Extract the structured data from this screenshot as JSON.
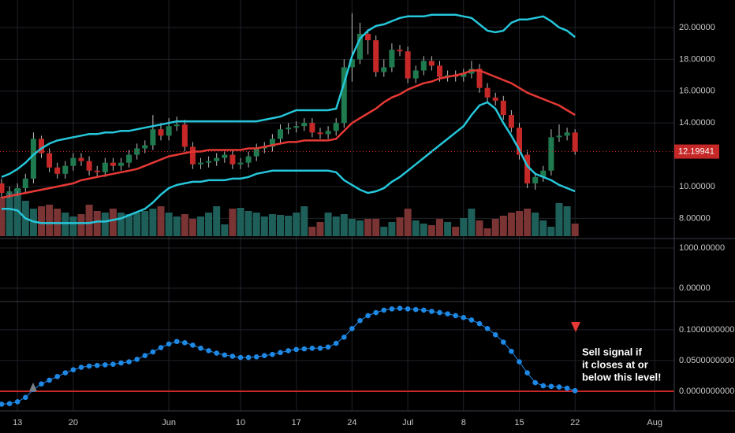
{
  "chart_data": [
    {
      "type": "candlestick",
      "categories": [
        null,
        null,
        "13",
        null,
        null,
        null,
        null,
        null,
        null,
        "20",
        null,
        null,
        null,
        null,
        null,
        null,
        null,
        null,
        null,
        null,
        null,
        "Jun",
        null,
        null,
        null,
        null,
        null,
        null,
        null,
        null,
        "10",
        null,
        null,
        null,
        null,
        null,
        null,
        "17",
        null,
        null,
        null,
        null,
        null,
        null,
        "24",
        null,
        null,
        null,
        null,
        null,
        null,
        "Jul",
        null,
        null,
        null,
        null,
        null,
        null,
        "8",
        null,
        null,
        null,
        null,
        null,
        null,
        "15",
        null,
        null,
        null,
        null,
        null,
        null,
        "22",
        null,
        null,
        null,
        null,
        null,
        null,
        null,
        null,
        null,
        "Aug"
      ],
      "open": [
        10.2,
        9.6,
        9.7,
        9.9,
        10.5,
        13.0,
        12.1,
        11.2,
        10.8,
        11.3,
        11.8,
        11.6,
        11.0,
        10.9,
        11.5,
        11.3,
        11.5,
        12.0,
        12.4,
        12.6,
        13.6,
        13.2,
        13.8,
        13.9,
        12.5,
        11.4,
        11.5,
        11.6,
        11.8,
        12.0,
        11.4,
        11.5,
        11.9,
        12.4,
        12.5,
        13.0,
        13.6,
        13.7,
        13.8,
        14.0,
        13.4,
        13.3,
        13.5,
        14.0,
        17.5,
        18.0,
        19.6,
        19.2,
        17.2,
        17.5,
        18.6,
        18.5,
        16.8,
        17.3,
        17.9,
        17.6,
        16.9,
        17.0,
        16.9,
        17.1,
        17.4,
        16.2,
        15.6,
        15.4,
        14.5,
        13.7,
        12.0,
        10.2,
        10.6,
        11.0,
        13.1,
        13.2,
        13.4,
        null,
        null,
        null,
        null,
        null,
        null,
        null,
        null,
        null,
        null
      ],
      "high": [
        10.5,
        10.0,
        10.2,
        10.8,
        13.4,
        13.2,
        12.4,
        11.5,
        11.6,
        12.1,
        12.1,
        11.9,
        11.3,
        11.8,
        11.8,
        11.8,
        12.3,
        12.7,
        12.9,
        14.5,
        14.0,
        14.3,
        14.4,
        14.2,
        12.8,
        11.8,
        11.9,
        12.1,
        12.3,
        12.3,
        11.8,
        12.2,
        12.7,
        12.8,
        13.3,
        13.9,
        14.0,
        14.1,
        14.3,
        14.3,
        13.7,
        13.8,
        14.3,
        18.0,
        20.9,
        20.3,
        19.9,
        19.5,
        18.0,
        19.0,
        18.9,
        18.8,
        17.6,
        18.2,
        18.2,
        17.9,
        17.3,
        17.3,
        17.4,
        17.9,
        17.7,
        16.5,
        15.9,
        15.7,
        14.8,
        14.0,
        12.3,
        10.9,
        11.3,
        13.6,
        13.9,
        13.7,
        13.6,
        null,
        null,
        null,
        null,
        null,
        null,
        null,
        null,
        null,
        null
      ],
      "low": [
        9.3,
        9.3,
        9.4,
        9.6,
        10.2,
        11.8,
        10.9,
        10.5,
        10.5,
        11.0,
        11.3,
        10.7,
        10.6,
        10.6,
        11.0,
        11.0,
        11.2,
        11.7,
        12.1,
        12.3,
        12.9,
        12.9,
        13.5,
        12.2,
        11.1,
        11.1,
        11.2,
        11.3,
        11.5,
        11.1,
        11.1,
        11.2,
        11.6,
        12.1,
        12.2,
        12.7,
        13.3,
        13.4,
        13.5,
        13.1,
        13.0,
        13.0,
        13.2,
        13.7,
        16.6,
        17.7,
        18.3,
        16.9,
        16.9,
        17.2,
        18.2,
        16.5,
        16.5,
        17.0,
        17.3,
        16.6,
        16.6,
        16.6,
        16.6,
        16.8,
        15.9,
        15.3,
        15.1,
        14.2,
        13.4,
        11.7,
        9.9,
        9.8,
        10.3,
        10.7,
        12.8,
        12.9,
        12.0,
        null,
        null,
        null,
        null,
        null,
        null,
        null,
        null,
        null,
        null
      ],
      "close": [
        9.6,
        9.7,
        9.9,
        10.5,
        13.0,
        12.1,
        11.2,
        10.8,
        11.3,
        11.8,
        11.6,
        11.0,
        10.9,
        11.5,
        11.3,
        11.5,
        12.0,
        12.4,
        12.6,
        13.6,
        13.2,
        13.8,
        13.9,
        12.5,
        11.4,
        11.5,
        11.6,
        11.8,
        12.0,
        11.4,
        11.5,
        11.9,
        12.4,
        12.5,
        13.0,
        13.6,
        13.7,
        13.8,
        14.0,
        13.4,
        13.3,
        13.5,
        14.0,
        17.5,
        18.0,
        19.6,
        19.2,
        17.2,
        17.5,
        18.6,
        18.5,
        16.8,
        17.3,
        17.9,
        17.6,
        16.9,
        17.0,
        16.9,
        17.1,
        17.4,
        16.2,
        15.6,
        15.4,
        14.5,
        13.7,
        12.0,
        10.2,
        10.6,
        11.0,
        13.1,
        13.2,
        13.4,
        12.19941,
        null,
        null,
        null,
        null,
        null,
        null,
        null,
        null,
        null,
        null
      ],
      "volume": [
        50,
        55,
        60,
        45,
        35,
        38,
        40,
        35,
        30,
        25,
        28,
        40,
        32,
        30,
        35,
        30,
        28,
        30,
        32,
        35,
        38,
        30,
        25,
        28,
        22,
        25,
        30,
        38,
        15,
        35,
        36,
        32,
        30,
        25,
        28,
        27,
        26,
        30,
        38,
        12,
        18,
        30,
        25,
        28,
        22,
        20,
        22,
        22,
        12,
        18,
        24,
        35,
        20,
        16,
        14,
        22,
        18,
        12,
        23,
        35,
        20,
        10,
        22,
        26,
        30,
        32,
        35,
        30,
        20,
        12,
        42,
        38,
        16,
        null,
        null,
        null,
        null,
        null,
        null,
        null,
        null,
        null,
        null
      ],
      "vlim": [
        0,
        300
      ],
      "up_color": "#1f7a4f",
      "down_color": "#c62828",
      "volume_up_color": "#1f5f5a",
      "volume_down_color": "#7a3434",
      "series": [
        {
          "color": "#26c6da",
          "values": [
            10.6,
            10.8,
            11.1,
            11.5,
            12.0,
            12.4,
            12.7,
            12.9,
            13.0,
            13.1,
            13.2,
            13.3,
            13.3,
            13.4,
            13.4,
            13.5,
            13.5,
            13.6,
            13.7,
            13.8,
            13.9,
            14.0,
            14.1,
            14.1,
            14.1,
            14.1,
            14.1,
            14.1,
            14.1,
            14.1,
            14.1,
            14.1,
            14.1,
            14.2,
            14.3,
            14.4,
            14.6,
            14.8,
            14.8,
            14.8,
            14.8,
            14.8,
            14.9,
            16.5,
            18.2,
            19.3,
            19.8,
            20.1,
            20.2,
            20.4,
            20.6,
            20.7,
            20.7,
            20.7,
            20.8,
            20.8,
            20.8,
            20.8,
            20.7,
            20.6,
            20.2,
            19.8,
            19.7,
            19.8,
            20.3,
            20.5,
            20.5,
            20.6,
            20.7,
            20.4,
            20.0,
            19.8,
            19.4,
            null,
            null,
            null,
            null,
            null,
            null,
            null,
            null,
            null,
            null
          ]
        },
        {
          "color": "#e53935",
          "values": [
            9.3,
            9.4,
            9.5,
            9.6,
            9.7,
            9.8,
            9.9,
            10.0,
            10.1,
            10.2,
            10.4,
            10.5,
            10.6,
            10.7,
            10.8,
            10.9,
            11.0,
            11.1,
            11.3,
            11.5,
            11.7,
            11.9,
            12.0,
            12.1,
            12.2,
            12.2,
            12.3,
            12.3,
            12.3,
            12.3,
            12.3,
            12.4,
            12.4,
            12.5,
            12.6,
            12.7,
            12.8,
            12.8,
            12.9,
            12.9,
            12.9,
            12.9,
            13.0,
            13.5,
            14.0,
            14.3,
            14.6,
            14.9,
            15.3,
            15.6,
            15.8,
            16.1,
            16.3,
            16.5,
            16.6,
            16.8,
            16.9,
            17.0,
            17.1,
            17.3,
            17.3,
            17.1,
            16.9,
            16.7,
            16.5,
            16.2,
            15.9,
            15.7,
            15.5,
            15.3,
            15.1,
            14.8,
            14.5,
            null,
            null,
            null,
            null,
            null,
            null,
            null,
            null,
            null,
            null
          ]
        },
        {
          "color": "#26c6da",
          "values": [
            8.6,
            8.6,
            8.5,
            8.0,
            7.8,
            7.7,
            7.7,
            7.7,
            7.7,
            7.7,
            7.7,
            7.7,
            7.8,
            7.8,
            7.9,
            8.0,
            8.2,
            8.4,
            8.6,
            9.0,
            9.5,
            9.9,
            10.1,
            10.2,
            10.3,
            10.3,
            10.4,
            10.4,
            10.4,
            10.5,
            10.5,
            10.6,
            10.8,
            10.9,
            11.0,
            11.0,
            11.0,
            11.0,
            11.0,
            11.0,
            11.0,
            11.0,
            10.9,
            10.4,
            10.1,
            9.8,
            9.6,
            9.7,
            9.9,
            10.3,
            10.6,
            11.0,
            11.4,
            11.8,
            12.2,
            12.6,
            13.0,
            13.4,
            13.8,
            14.5,
            15.1,
            15.3,
            14.9,
            14.0,
            13.2,
            12.3,
            11.3,
            10.8,
            10.6,
            10.4,
            10.1,
            9.9,
            9.7,
            null,
            null,
            null,
            null,
            null,
            null,
            null,
            null,
            null,
            null
          ]
        }
      ],
      "ylim": [
        6.88,
        21.73
      ],
      "yticks": [
        {
          "value": 8,
          "label": "8.00000"
        },
        {
          "value": 10,
          "label": "10.00000"
        },
        {
          "value": 14,
          "label": "14.00000"
        },
        {
          "value": 16,
          "label": "16.00000"
        },
        {
          "value": 18,
          "label": "18.00000"
        },
        {
          "value": 20,
          "label": "20.00000"
        }
      ],
      "price_color": "#c62828"
    },
    {
      "type": "line",
      "ylim": [
        -333,
        1235
      ],
      "yticks": [
        {
          "value": 0,
          "label": "0.00000"
        },
        {
          "value": 1000,
          "label": "1000.00000"
        }
      ]
    },
    {
      "type": "line",
      "color": "#1e88e5",
      "values": [
        -0.021,
        -0.02,
        -0.017,
        -0.01,
        0.003,
        0.012,
        0.018,
        0.024,
        0.03,
        0.035,
        0.039,
        0.041,
        0.042,
        0.043,
        0.044,
        0.046,
        0.048,
        0.052,
        0.058,
        0.064,
        0.071,
        0.077,
        0.081,
        0.079,
        0.075,
        0.07,
        0.066,
        0.062,
        0.059,
        0.057,
        0.055,
        0.055,
        0.056,
        0.058,
        0.06,
        0.063,
        0.066,
        0.068,
        0.069,
        0.07,
        0.07,
        0.072,
        0.078,
        0.088,
        0.102,
        0.115,
        0.123,
        0.128,
        0.132,
        0.134,
        0.135,
        0.134,
        0.133,
        0.132,
        0.13,
        0.128,
        0.126,
        0.123,
        0.12,
        0.116,
        0.11,
        0.102,
        0.092,
        0.08,
        0.065,
        0.048,
        0.03,
        0.014,
        0.009,
        0.008,
        0.007,
        0.005,
        0.001,
        null,
        null,
        null,
        null,
        null,
        null,
        null,
        null,
        null,
        null
      ],
      "threshold": 0,
      "threshold_color": "#c62828",
      "annotation": [
        "Sell signal if",
        " it closes at or",
        "below this level!"
      ],
      "ylim": [
        -0.032,
        0.146
      ],
      "yticks": [
        {
          "value": 0,
          "label": "0.0000000000"
        },
        {
          "value": 0.05,
          "label": "0.0500000000"
        },
        {
          "value": 0.1,
          "label": "0.1000000000"
        }
      ]
    }
  ]
}
